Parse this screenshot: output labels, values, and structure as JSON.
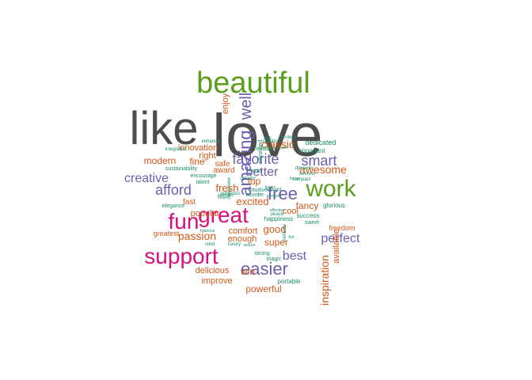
{
  "palette": {
    "gray": "#4d4d4d",
    "green": "#5a9e1f",
    "magenta": "#d6117d",
    "purple": "#6a5fb0",
    "orange": "#d2581a",
    "teal": "#1a8f6a"
  },
  "words": [
    {
      "text": "love",
      "color": "gray"
    },
    {
      "text": "like",
      "color": "gray"
    },
    {
      "text": "beautiful",
      "color": "green"
    },
    {
      "text": "work",
      "color": "green"
    },
    {
      "text": "support",
      "color": "magenta"
    },
    {
      "text": "great",
      "color": "magenta"
    },
    {
      "text": "fun",
      "color": "magenta"
    },
    {
      "text": "amazing",
      "color": "purple"
    },
    {
      "text": "well",
      "color": "purple"
    },
    {
      "text": "favorite",
      "color": "purple"
    },
    {
      "text": "smart",
      "color": "purple"
    },
    {
      "text": "free",
      "color": "purple"
    },
    {
      "text": "easier",
      "color": "purple"
    },
    {
      "text": "afford",
      "color": "purple"
    },
    {
      "text": "creative",
      "color": "purple"
    },
    {
      "text": "better",
      "color": "purple"
    },
    {
      "text": "perfect",
      "color": "purple"
    },
    {
      "text": "best",
      "color": "purple"
    },
    {
      "text": "classic",
      "color": "orange"
    },
    {
      "text": "awesome",
      "color": "orange"
    },
    {
      "text": "inspiration",
      "color": "orange"
    },
    {
      "text": "passion",
      "color": "orange"
    },
    {
      "text": "fresh",
      "color": "orange"
    },
    {
      "text": "excited",
      "color": "orange"
    },
    {
      "text": "good",
      "color": "orange"
    },
    {
      "text": "fancy",
      "color": "orange"
    },
    {
      "text": "super",
      "color": "orange"
    },
    {
      "text": "top",
      "color": "orange"
    },
    {
      "text": "win",
      "color": "orange"
    },
    {
      "text": "modern",
      "color": "orange"
    },
    {
      "text": "fine",
      "color": "orange"
    },
    {
      "text": "innovation",
      "color": "orange"
    },
    {
      "text": "right",
      "color": "orange"
    },
    {
      "text": "enjoy",
      "color": "orange"
    },
    {
      "text": "popular",
      "color": "orange"
    },
    {
      "text": "comfort",
      "color": "orange"
    },
    {
      "text": "enough",
      "color": "orange"
    },
    {
      "text": "cool",
      "color": "orange"
    },
    {
      "text": "available",
      "color": "orange"
    },
    {
      "text": "powerful",
      "color": "orange"
    },
    {
      "text": "improve",
      "color": "orange"
    },
    {
      "text": "delicious",
      "color": "orange"
    },
    {
      "text": "safe",
      "color": "orange"
    },
    {
      "text": "award",
      "color": "orange"
    },
    {
      "text": "fast",
      "color": "orange"
    },
    {
      "text": "greatest",
      "color": "orange"
    },
    {
      "text": "freedom",
      "color": "orange"
    },
    {
      "text": "dedicated",
      "color": "teal"
    },
    {
      "text": "important",
      "color": "teal"
    },
    {
      "text": "reliable",
      "color": "teal"
    },
    {
      "text": "advanced",
      "color": "teal"
    },
    {
      "text": "sustainability",
      "color": "teal"
    },
    {
      "text": "encourage",
      "color": "teal"
    },
    {
      "text": "talent",
      "color": "teal"
    },
    {
      "text": "integrated",
      "color": "teal"
    },
    {
      "text": "enhance",
      "color": "teal"
    },
    {
      "text": "happiness",
      "color": "teal"
    },
    {
      "text": "success",
      "color": "teal"
    },
    {
      "text": "sweet",
      "color": "teal"
    },
    {
      "text": "glorious",
      "color": "teal"
    },
    {
      "text": "magic",
      "color": "teal"
    },
    {
      "text": "strong",
      "color": "teal"
    },
    {
      "text": "portable",
      "color": "teal"
    },
    {
      "text": "elegance",
      "color": "teal"
    },
    {
      "text": "hilarious",
      "color": "teal"
    },
    {
      "text": "solid",
      "color": "teal"
    },
    {
      "text": "gorgeous",
      "color": "teal"
    },
    {
      "text": "helping",
      "color": "teal"
    },
    {
      "text": "intuitive",
      "color": "teal"
    },
    {
      "text": "wonder",
      "color": "teal"
    },
    {
      "text": "colorful",
      "color": "teal"
    },
    {
      "text": "empower",
      "color": "teal"
    },
    {
      "text": "dynamic",
      "color": "teal"
    },
    {
      "text": "compact",
      "color": "teal"
    },
    {
      "text": "protect",
      "color": "teal"
    },
    {
      "text": "stainless",
      "color": "teal"
    },
    {
      "text": "peace",
      "color": "teal"
    },
    {
      "text": "effective",
      "color": "teal"
    },
    {
      "text": "secure",
      "color": "teal"
    },
    {
      "text": "welcome",
      "color": "teal"
    },
    {
      "text": "instantly",
      "color": "teal"
    },
    {
      "text": "friendly",
      "color": "teal"
    },
    {
      "text": "focus",
      "color": "teal"
    },
    {
      "text": "pure",
      "color": "teal"
    },
    {
      "text": "authentic",
      "color": "teal"
    },
    {
      "text": "reward",
      "color": "teal"
    },
    {
      "text": "luxury",
      "color": "teal"
    },
    {
      "text": "hot",
      "color": "teal"
    },
    {
      "text": "pinnacle",
      "color": "teal"
    },
    {
      "text": "honor",
      "color": "teal"
    },
    {
      "text": "built",
      "color": "teal"
    },
    {
      "text": "master",
      "color": "teal"
    }
  ]
}
